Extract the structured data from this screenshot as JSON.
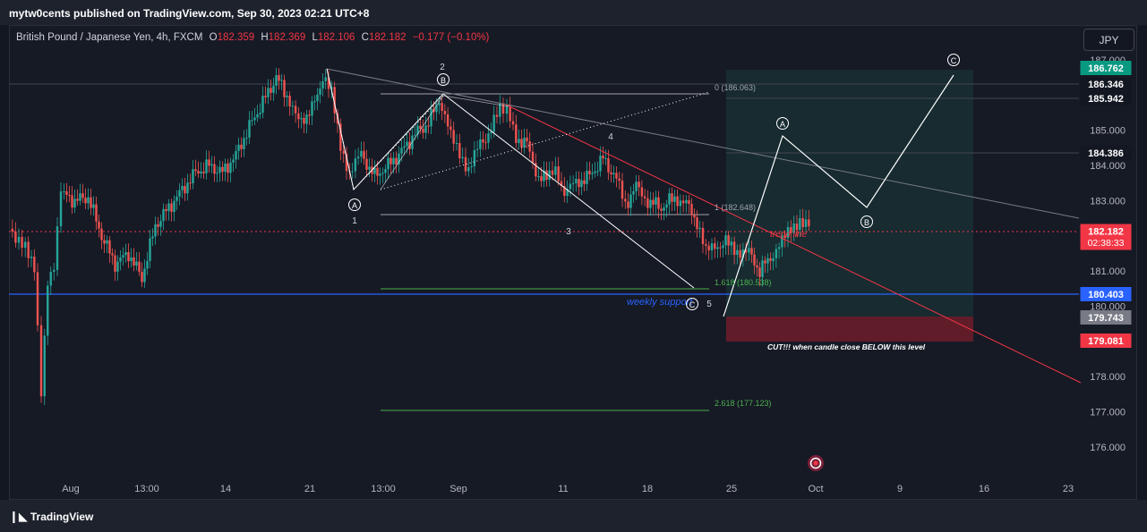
{
  "header": {
    "publisher": "mytw0cents published on TradingView.com, Sep 30, 2023 02:21 UTC+8"
  },
  "symbol": {
    "name": "British Pound / Japanese Yen, 4h, FXCM",
    "open_label": "O",
    "open": "182.359",
    "high_label": "H",
    "high": "182.369",
    "low_label": "L",
    "low": "182.106",
    "close_label": "C",
    "close": "182.182",
    "change": "−0.177 (−0.10%)"
  },
  "currency_button": "JPY",
  "price_axis": {
    "ticks": [
      "187.000",
      "186.000",
      "185.000",
      "184.000",
      "183.000",
      "182.000",
      "181.000",
      "180.000",
      "179.000",
      "178.000",
      "177.000",
      "176.000"
    ],
    "badges": [
      {
        "id": "b1",
        "text": "186.762",
        "color": "#089981"
      },
      {
        "id": "b2",
        "text": "186.346",
        "color": "#131722"
      },
      {
        "id": "b3",
        "text": "185.942",
        "color": "#131722"
      },
      {
        "id": "b4",
        "text": "184.386",
        "color": "#131722"
      },
      {
        "id": "b5",
        "text": "182.182",
        "sub": "02:38:33",
        "color": "#f23645"
      },
      {
        "id": "b6",
        "text": "180.403",
        "color": "#2962ff"
      },
      {
        "id": "b7",
        "text": "179.743",
        "color": "#787b86"
      },
      {
        "id": "b8",
        "text": "179.081",
        "color": "#f23645"
      }
    ]
  },
  "time_axis": [
    "Aug",
    "13:00",
    "14",
    "21",
    "13:00",
    "Sep",
    "11",
    "18",
    "25",
    "Oct",
    "9",
    "16",
    "23"
  ],
  "annotations": {
    "fib_0": "0 (186.063)",
    "fib_1": "1 (182.648)",
    "fib_1618": "1.618 (180.538)",
    "fib_2618": "2.618 (177.123)",
    "weekly_support": "weekly support",
    "trend_line": "trend line",
    "cut_note": "CUT!!! when candle close BELOW this level",
    "wave_labels": [
      "A",
      "B",
      "C",
      "1",
      "2",
      "3",
      "4",
      "5"
    ]
  },
  "footer": {
    "brand": "TradingView"
  },
  "colors": {
    "up": "#26a69a",
    "down": "#ef5350",
    "background": "#161a25"
  }
}
